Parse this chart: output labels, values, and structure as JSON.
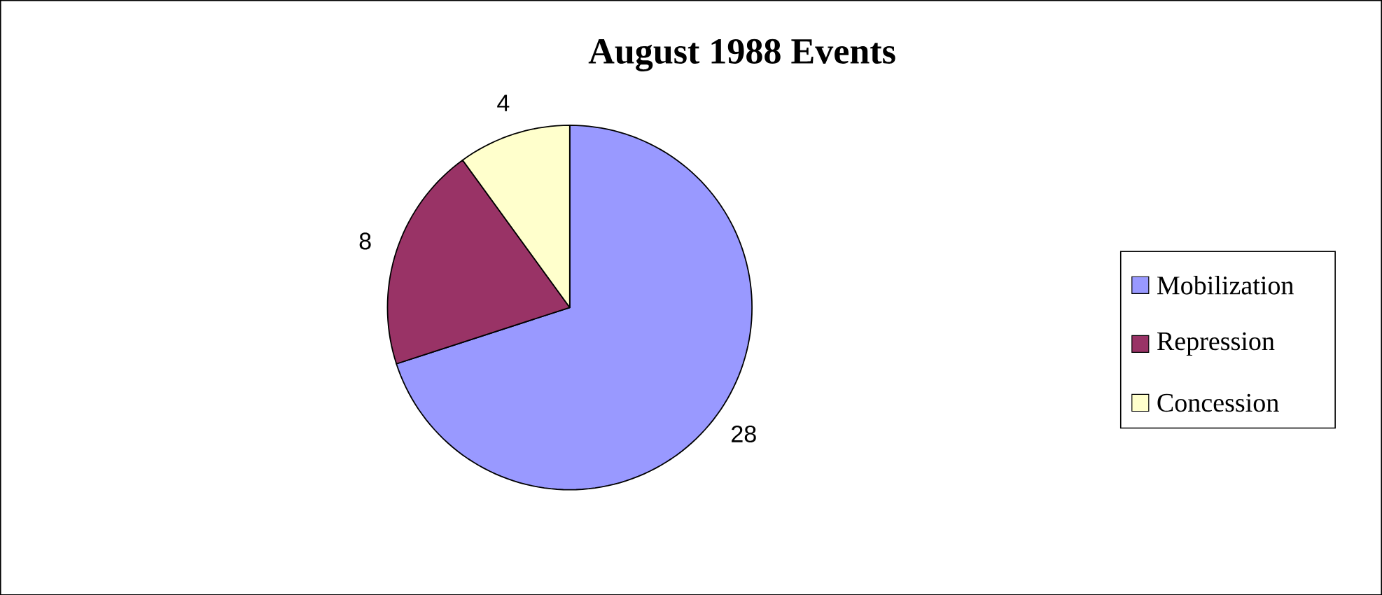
{
  "chart_data": {
    "type": "pie",
    "title": "August 1988 Events",
    "categories": [
      "Mobilization",
      "Repression",
      "Concession"
    ],
    "values": [
      28,
      8,
      4
    ],
    "colors": [
      "#9999ff",
      "#993366",
      "#ffffcc"
    ],
    "data_labels": true,
    "legend": "right"
  }
}
